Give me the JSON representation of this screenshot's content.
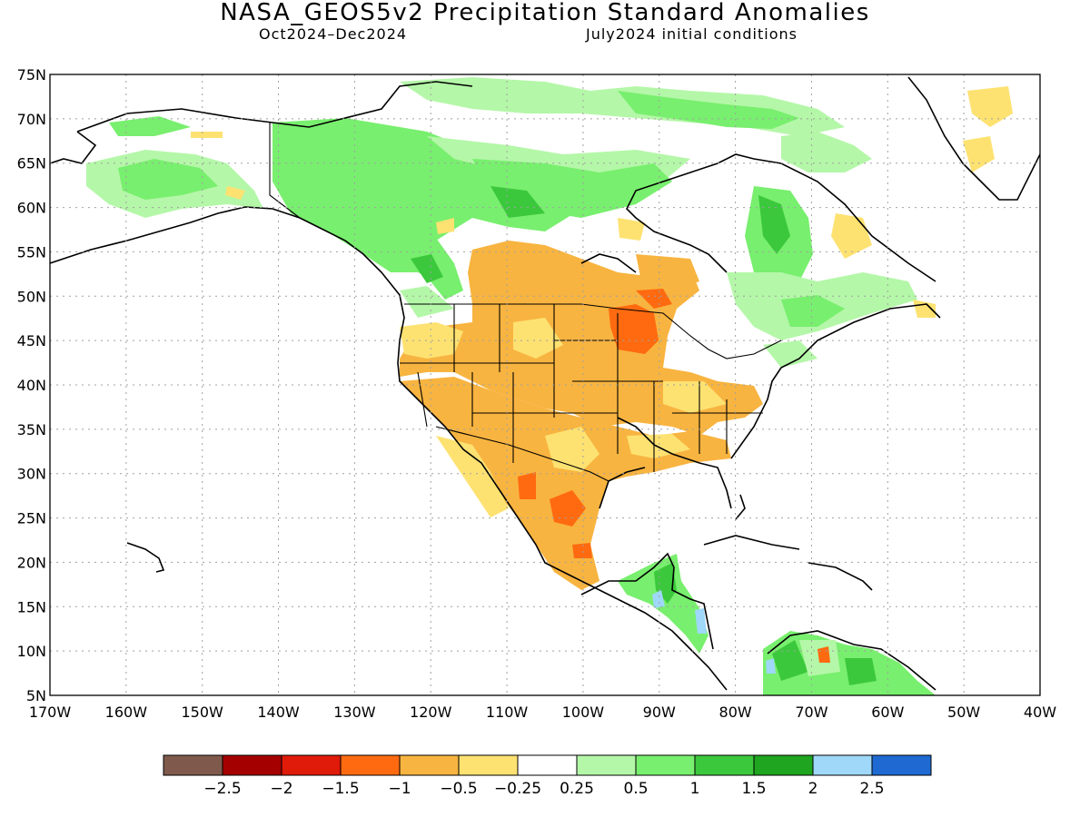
{
  "title": "NASA_GEOS5v2 Precipitation Standard Anomalies",
  "period": "Oct2024–Dec2024",
  "init": "July2024 initial conditions",
  "lat_labels": [
    "75N",
    "70N",
    "65N",
    "60N",
    "55N",
    "50N",
    "45N",
    "40N",
    "35N",
    "30N",
    "25N",
    "20N",
    "15N",
    "10N",
    "5N"
  ],
  "lon_labels": [
    "170W",
    "160W",
    "150W",
    "140W",
    "130W",
    "120W",
    "110W",
    "100W",
    "90W",
    "80W",
    "70W",
    "60W",
    "50W",
    "40W"
  ],
  "colorbar": {
    "colors": [
      "#7f5a4c",
      "#a50000",
      "#e01b0a",
      "#ff6a10",
      "#f8b440",
      "#fde272",
      "#ffffff",
      "#b4f7a8",
      "#78ef6e",
      "#3cc83c",
      "#1fa51f",
      "#9fd8f8",
      "#1e6ad2"
    ],
    "labels": [
      "−2.5",
      "−2",
      "−1.5",
      "−1",
      "−0.5",
      "−0.25",
      "0.25",
      "0.5",
      "1",
      "1.5",
      "2",
      "2.5"
    ]
  },
  "palette": {
    "land_outline": "#000000",
    "grid": "#a0a0a0",
    "lt_green": "#b4f7a8",
    "green": "#78ef6e",
    "dk_green": "#3cc83c",
    "yellow": "#fde272",
    "orange": "#f8b440",
    "red_orange": "#ff6a10",
    "lt_blue": "#9fd8f8"
  }
}
